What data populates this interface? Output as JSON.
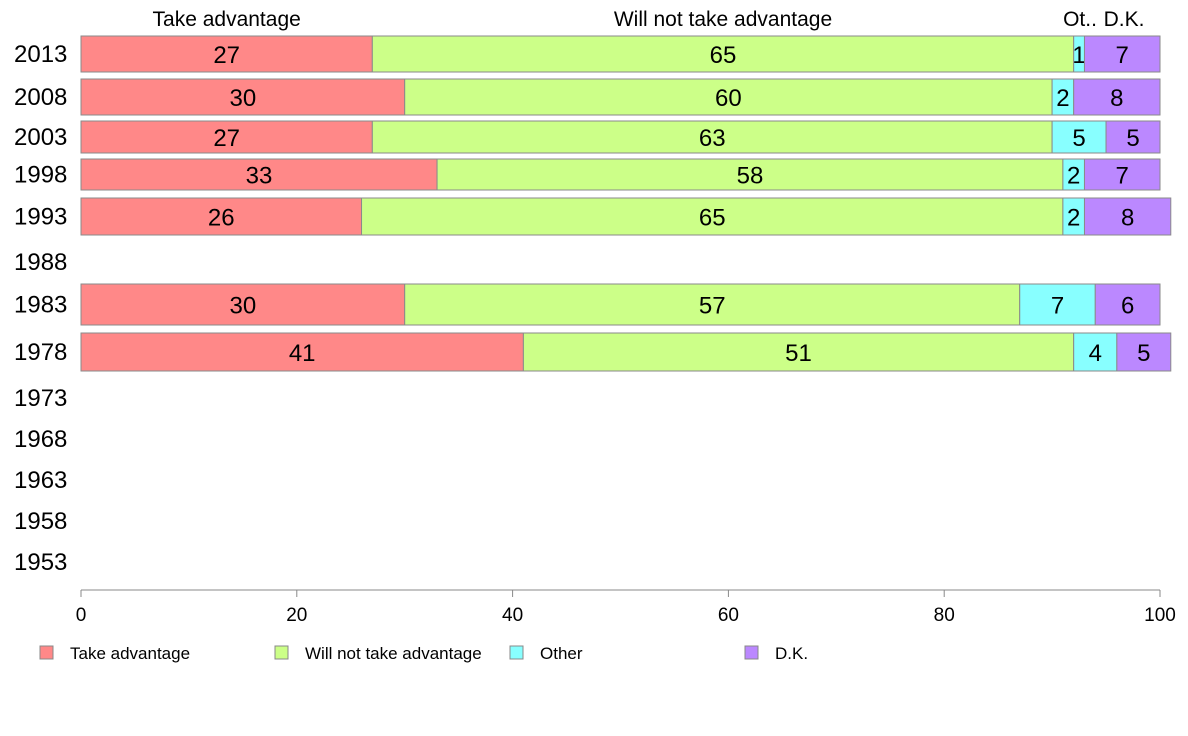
{
  "chart_data": {
    "type": "bar",
    "orientation": "horizontal",
    "stacked": true,
    "categories": [
      "2013",
      "2008",
      "2003",
      "1998",
      "1993",
      "1988",
      "1983",
      "1978",
      "1973",
      "1968",
      "1963",
      "1958",
      "1953"
    ],
    "series": [
      {
        "name": "Take advantage",
        "color": "#ff8888",
        "values": [
          27,
          30,
          27,
          33,
          26,
          null,
          30,
          41,
          null,
          null,
          null,
          null,
          null
        ]
      },
      {
        "name": "Will not take advantage",
        "color": "#ccff88",
        "values": [
          65,
          60,
          63,
          58,
          65,
          null,
          57,
          51,
          null,
          null,
          null,
          null,
          null
        ]
      },
      {
        "name": "Other",
        "color": "#88ffff",
        "values": [
          1,
          2,
          5,
          2,
          2,
          null,
          7,
          4,
          null,
          null,
          null,
          null,
          null
        ]
      },
      {
        "name": "D.K.",
        "color": "#bb88ff",
        "values": [
          7,
          8,
          5,
          7,
          8,
          null,
          6,
          5,
          null,
          null,
          null,
          null,
          null
        ]
      }
    ],
    "column_headers": [
      "Take advantage",
      "Will not take advantage",
      "Ot..",
      "D.K."
    ],
    "xlim": [
      0,
      100
    ],
    "xticks": [
      0,
      20,
      40,
      60,
      80,
      100
    ],
    "grid": false,
    "legend_position": "bottom"
  }
}
